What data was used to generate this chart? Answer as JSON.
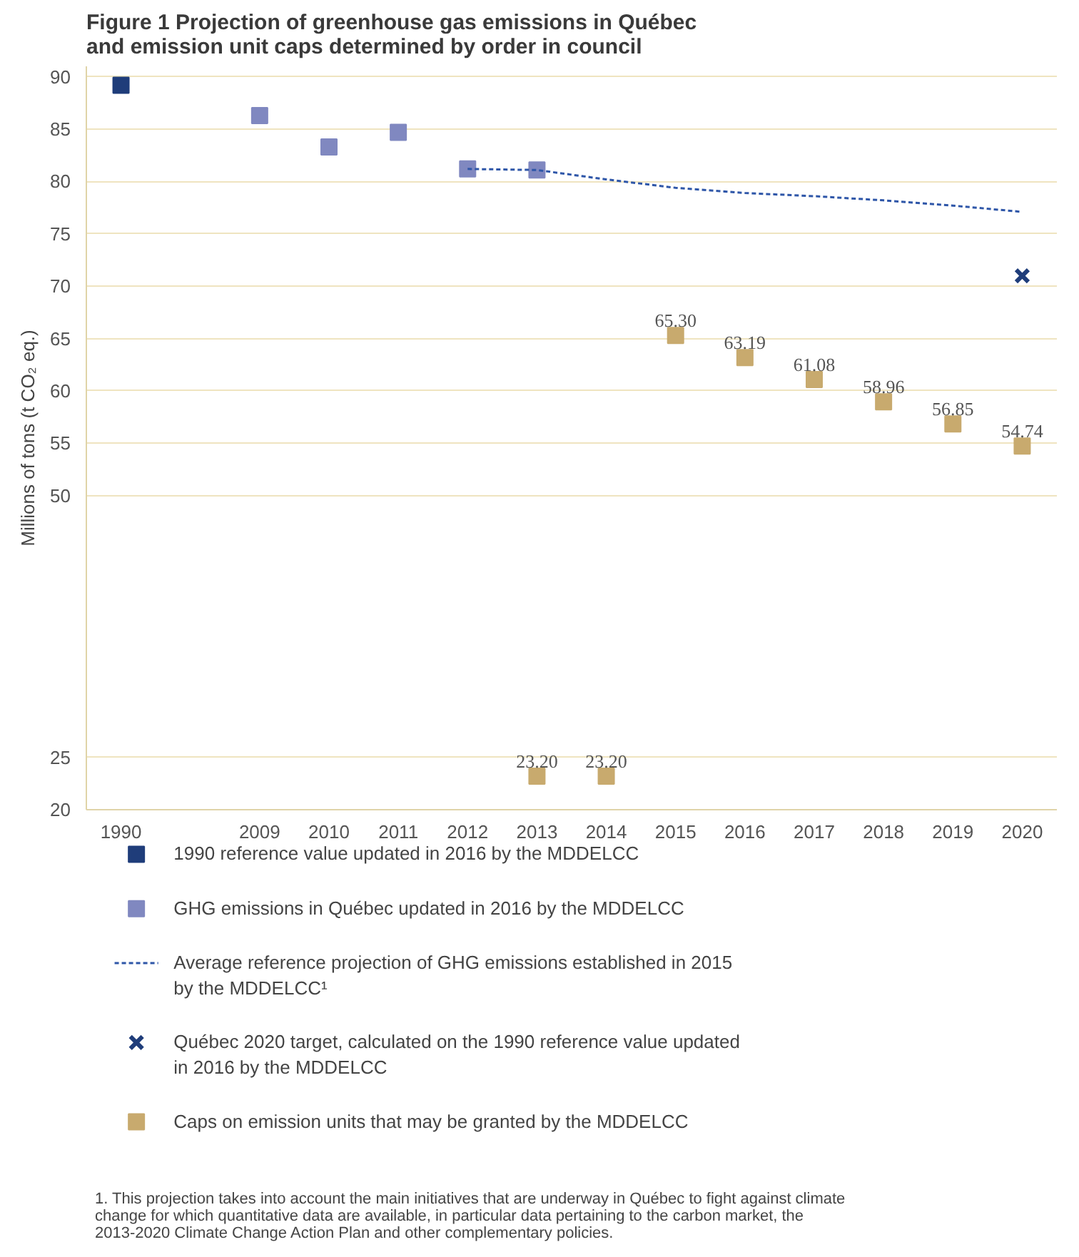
{
  "chart_data": {
    "type": "scatter",
    "title": "Figure 1   Projection of greenhouse gas emissions in Québec\nand emission unit caps determined by order in council",
    "ylabel": "Millions of tons (t CO₂ eq.)",
    "categories": [
      "1990",
      null,
      "2009",
      "2010",
      "2011",
      "2012",
      "2013",
      "2014",
      "2015",
      "2016",
      "2017",
      "2018",
      "2019",
      "2020"
    ],
    "ylim": [
      20,
      91
    ],
    "yticks": [
      20,
      25,
      50,
      55,
      60,
      65,
      70,
      75,
      80,
      85,
      90
    ],
    "grid": "y",
    "legend": "bottom",
    "series": [
      {
        "name": "1990 reference value updated in 2016 by the MDDELCC",
        "marker": "square",
        "color": "#1f3d7a",
        "values": [
          89.2,
          null,
          null,
          null,
          null,
          null,
          null,
          null,
          null,
          null,
          null,
          null,
          null,
          null
        ]
      },
      {
        "name": "GHG emissions in Québec updated in 2016 by the MDDELCC",
        "marker": "square",
        "color": "#8088c0",
        "values": [
          null,
          null,
          86.3,
          83.3,
          84.7,
          81.2,
          81.1,
          null,
          null,
          null,
          null,
          null,
          null,
          null
        ]
      },
      {
        "name": "Average reference projection of GHG emissions established in 2015 by the MDDELCC¹",
        "type": "line",
        "line_style": "dashed",
        "color": "#2e56a8",
        "values": [
          null,
          null,
          null,
          null,
          null,
          81.2,
          81.1,
          80.2,
          79.4,
          78.9,
          78.6,
          78.2,
          77.7,
          77.1
        ]
      },
      {
        "name": "Québec 2020 target, calculated on the 1990 reference value updated in 2016 by the MDDELCC",
        "marker": "cross",
        "color": "#1f3d7a",
        "values": [
          null,
          null,
          null,
          null,
          null,
          null,
          null,
          null,
          null,
          null,
          null,
          null,
          null,
          71.0
        ]
      },
      {
        "name": "Caps on emission units that may be granted by the MDDELCC",
        "marker": "square",
        "color": "#c8aa6e",
        "values": [
          null,
          null,
          null,
          null,
          null,
          null,
          23.2,
          23.2,
          65.3,
          63.19,
          61.08,
          58.96,
          56.85,
          54.74
        ],
        "value_labels": [
          null,
          null,
          null,
          null,
          null,
          null,
          "23.20",
          "23.20",
          "65.30",
          "63.19",
          "61.08",
          "58.96",
          "56.85",
          "54.74"
        ]
      }
    ],
    "annotations": [
      "1. This projection takes into account the main initiatives that are underway in Québec to fight against climate change for which quantitative data are available, in particular data pertaining to the carbon market, the 2013-2020 Climate Change Action Plan and other complementary policies."
    ]
  }
}
